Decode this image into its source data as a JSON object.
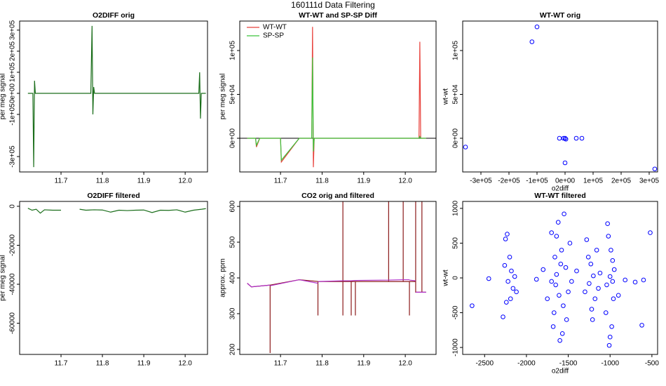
{
  "title": "160111d   Data Filtering",
  "chart_data": [
    {
      "type": "line",
      "title": "O2DIFF orig",
      "y_label": "per meg signal",
      "x": [
        11.62,
        11.632,
        11.634,
        11.636,
        11.638,
        11.64,
        11.7,
        11.772,
        11.775,
        11.777,
        11.779,
        11.781,
        11.9,
        12.033,
        12.035,
        12.037,
        12.039,
        12.05
      ],
      "series": [
        {
          "color": "#1b6e1b",
          "values": [
            0,
            0,
            -350000,
            60000,
            0,
            0,
            0,
            0,
            320000,
            -100000,
            30000,
            0,
            0,
            0,
            100000,
            -120000,
            0,
            0
          ]
        }
      ],
      "xlim": [
        11.6,
        12.054
      ],
      "ylim": [
        -373000,
        343000
      ],
      "xticks": [
        11.7,
        11.8,
        11.9,
        {
          "value": 12,
          "label": "12.0"
        }
      ],
      "yticks": [
        {
          "value": -300000,
          "label": "-3e+05"
        },
        {
          "value": -100000,
          "label": "-1e+05"
        },
        {
          "value": 0,
          "label": "0e+00"
        },
        {
          "value": 100000,
          "label": "1e+05"
        },
        {
          "value": 200000,
          "label": "2e+05"
        },
        {
          "value": 300000,
          "label": "3e+05"
        }
      ]
    },
    {
      "type": "line",
      "title": "WT-WT and SP-SP Diff",
      "y_label": "per meg signal",
      "legend": "top-left",
      "hline": 0,
      "x": [
        11.62,
        11.64,
        11.642,
        11.65,
        11.7,
        11.702,
        11.745,
        11.775,
        11.777,
        11.779,
        11.781,
        11.85,
        12.033,
        12.035,
        12.037,
        12.05
      ],
      "series": [
        {
          "name": "WT-WT",
          "color": "#e8403a",
          "values": [
            0,
            0,
            -10000,
            0,
            0,
            -27000,
            0,
            0,
            127000,
            -33000,
            0,
            0,
            0,
            110000,
            0,
            0
          ]
        },
        {
          "name": "SP-SP",
          "color": "#3cc43c",
          "values": [
            0,
            0,
            -8000,
            0,
            0,
            -25000,
            0,
            0,
            92000,
            -15000,
            0,
            0,
            0,
            2000,
            0,
            0
          ]
        }
      ],
      "xlim": [
        11.602,
        12.074
      ],
      "ylim": [
        -38400,
        133600
      ],
      "xticks": [
        11.7,
        11.8,
        11.9,
        {
          "value": 12,
          "label": "12.0"
        }
      ],
      "yticks": [
        {
          "value": 0,
          "label": "0e+00"
        },
        {
          "value": 50000,
          "label": "5e+04"
        },
        {
          "value": 100000,
          "label": "1e+05"
        }
      ]
    },
    {
      "type": "scatter",
      "title": "WT-WT orig",
      "x_label": "o2diff",
      "y_label": "wt-wt",
      "x": [
        -355000,
        -118000,
        -100000,
        -20000,
        -5000,
        0,
        3000,
        40000,
        60000,
        0,
        320000
      ],
      "series": [
        {
          "color": "#0000ff",
          "values": [
            -10000,
            110000,
            127000,
            0,
            0,
            0,
            -1000,
            0,
            0,
            -28000,
            -35000
          ]
        }
      ],
      "xlim": [
        -365000,
        330000
      ],
      "ylim": [
        -38400,
        133600
      ],
      "xticks": [
        {
          "value": -300000,
          "label": "-3e+05"
        },
        {
          "value": -200000,
          "label": "-2e+05"
        },
        {
          "value": -100000,
          "label": "-1e+05"
        },
        {
          "value": 0,
          "label": "0e+00"
        },
        {
          "value": 100000,
          "label": "1e+05"
        },
        {
          "value": 200000,
          "label": "2e+05"
        },
        {
          "value": 300000,
          "label": "3e+05"
        }
      ],
      "yticks": [
        {
          "value": 0,
          "label": "0e+00"
        },
        {
          "value": 50000,
          "label": "5e+04"
        },
        {
          "value": 100000,
          "label": "1e+05"
        }
      ]
    },
    {
      "type": "line",
      "title": "O2DIFF filtered",
      "y_label": "per meg signal",
      "x": [
        11.62,
        11.63,
        11.64,
        11.65,
        11.66,
        11.68,
        11.7,
        11.72,
        11.745,
        11.76,
        11.78,
        11.8,
        11.82,
        11.84,
        11.86,
        11.88,
        11.9,
        11.92,
        11.94,
        11.96,
        11.98,
        12.0,
        12.02,
        12.04,
        12.05
      ],
      "series": [
        {
          "color": "#1b6e1b",
          "values": [
            -1000,
            -2000,
            -1500,
            -3500,
            -1800,
            -2000,
            -2000,
            null,
            -1500,
            -2000,
            -1800,
            -1900,
            -3000,
            -2000,
            -2200,
            -2000,
            -1900,
            -3200,
            -2000,
            -2100,
            -1800,
            -3000,
            -2000,
            -1500,
            -1200
          ]
        }
      ],
      "xlim": [
        11.6,
        12.054
      ],
      "ylim": [
        -76000,
        2500
      ],
      "xticks": [
        11.7,
        11.8,
        11.9,
        {
          "value": 12,
          "label": "12.0"
        }
      ],
      "yticks": [
        -60000,
        -40000,
        -20000,
        0
      ]
    },
    {
      "type": "line",
      "title": "CO2 orig and filtered",
      "y_label": "approx. ppm",
      "x": [
        11.62,
        11.63,
        11.675,
        11.675,
        11.675,
        11.745,
        11.79,
        11.79,
        11.79,
        11.85,
        11.85,
        11.85,
        11.85,
        11.87,
        11.87,
        11.87,
        11.88,
        11.88,
        11.88,
        11.96,
        11.96,
        11.96,
        11.995,
        11.995,
        11.995,
        12.01,
        12.01,
        12.01,
        12.025,
        12.025,
        12.025,
        12.04,
        12.04,
        12.04,
        12.05
      ],
      "series": [
        {
          "color": "#8b1a1a",
          "values": [
            385,
            375,
            380,
            190,
            380,
            395,
            390,
            295,
            390,
            390,
            650,
            295,
            390,
            390,
            295,
            390,
            390,
            295,
            390,
            390,
            650,
            390,
            390,
            650,
            390,
            390,
            295,
            390,
            390,
            650,
            360,
            360,
            650,
            360,
            360
          ]
        },
        {
          "color": "#b030c8",
          "values": [
            385,
            375,
            380,
            null,
            378,
            395,
            385,
            null,
            390,
            392,
            null,
            null,
            392,
            392,
            null,
            392,
            393,
            null,
            393,
            394,
            null,
            394,
            395,
            null,
            395,
            395,
            null,
            394,
            392,
            null,
            360,
            360,
            null,
            360,
            360
          ]
        }
      ],
      "xlim": [
        11.602,
        12.074
      ],
      "ylim": [
        186,
        614
      ],
      "xticks": [
        11.7,
        11.8,
        11.9,
        {
          "value": 12,
          "label": "12.0"
        }
      ],
      "yticks": [
        200,
        300,
        400,
        500,
        600
      ]
    },
    {
      "type": "scatter",
      "title": "WT-WT filtered",
      "x_label": "o2diff",
      "y_label": "wt-wt",
      "x": [
        -2650,
        -2450,
        -2280,
        -2250,
        -2230,
        -2200,
        -2180,
        -2160,
        -2220,
        -2140,
        -2260,
        -2190,
        -2120,
        -2240,
        -1880,
        -1800,
        -1750,
        -1700,
        -1680,
        -1660,
        -1650,
        -1640,
        -1620,
        -1600,
        -1580,
        -1560,
        -1550,
        -1530,
        -1520,
        -1500,
        -1480,
        -1460,
        -1610,
        -1590,
        -1700,
        -1570,
        -1640,
        -1670,
        -1400,
        -1300,
        -1280,
        -1250,
        -1230,
        -1220,
        -1200,
        -1180,
        -1160,
        -1140,
        -1120,
        -1210,
        -1260,
        -1050,
        -1030,
        -1010,
        -1000,
        -990,
        -980,
        -970,
        -960,
        -1000,
        -1020,
        -1040,
        -970,
        -950,
        -900,
        -820,
        -700,
        -620,
        -600,
        -520
      ],
      "series": [
        {
          "color": "#0000ff",
          "values": [
            -400,
            -10,
            -560,
            560,
            630,
            300,
            100,
            -150,
            -50,
            20,
            180,
            -300,
            -200,
            -350,
            -20,
            120,
            -300,
            650,
            -700,
            300,
            -100,
            50,
            800,
            -900,
            400,
            -400,
            920,
            150,
            -600,
            -200,
            500,
            -50,
            -250,
            200,
            -50,
            -800,
            600,
            -500,
            100,
            -200,
            550,
            -80,
            200,
            -450,
            30,
            -300,
            400,
            -150,
            70,
            -600,
            300,
            -500,
            780,
            -970,
            20,
            400,
            -700,
            250,
            -300,
            -850,
            600,
            -100,
            -50,
            120,
            -250,
            -30,
            -60,
            -680,
            -30,
            650
          ]
        }
      ],
      "xlim": [
        -2762,
        -432
      ],
      "ylim": [
        -1100,
        1100
      ],
      "xticks": [
        -2500,
        -2000,
        -1500,
        -1000,
        -500
      ],
      "yticks": [
        -1000,
        -500,
        0,
        500,
        1000
      ]
    }
  ]
}
